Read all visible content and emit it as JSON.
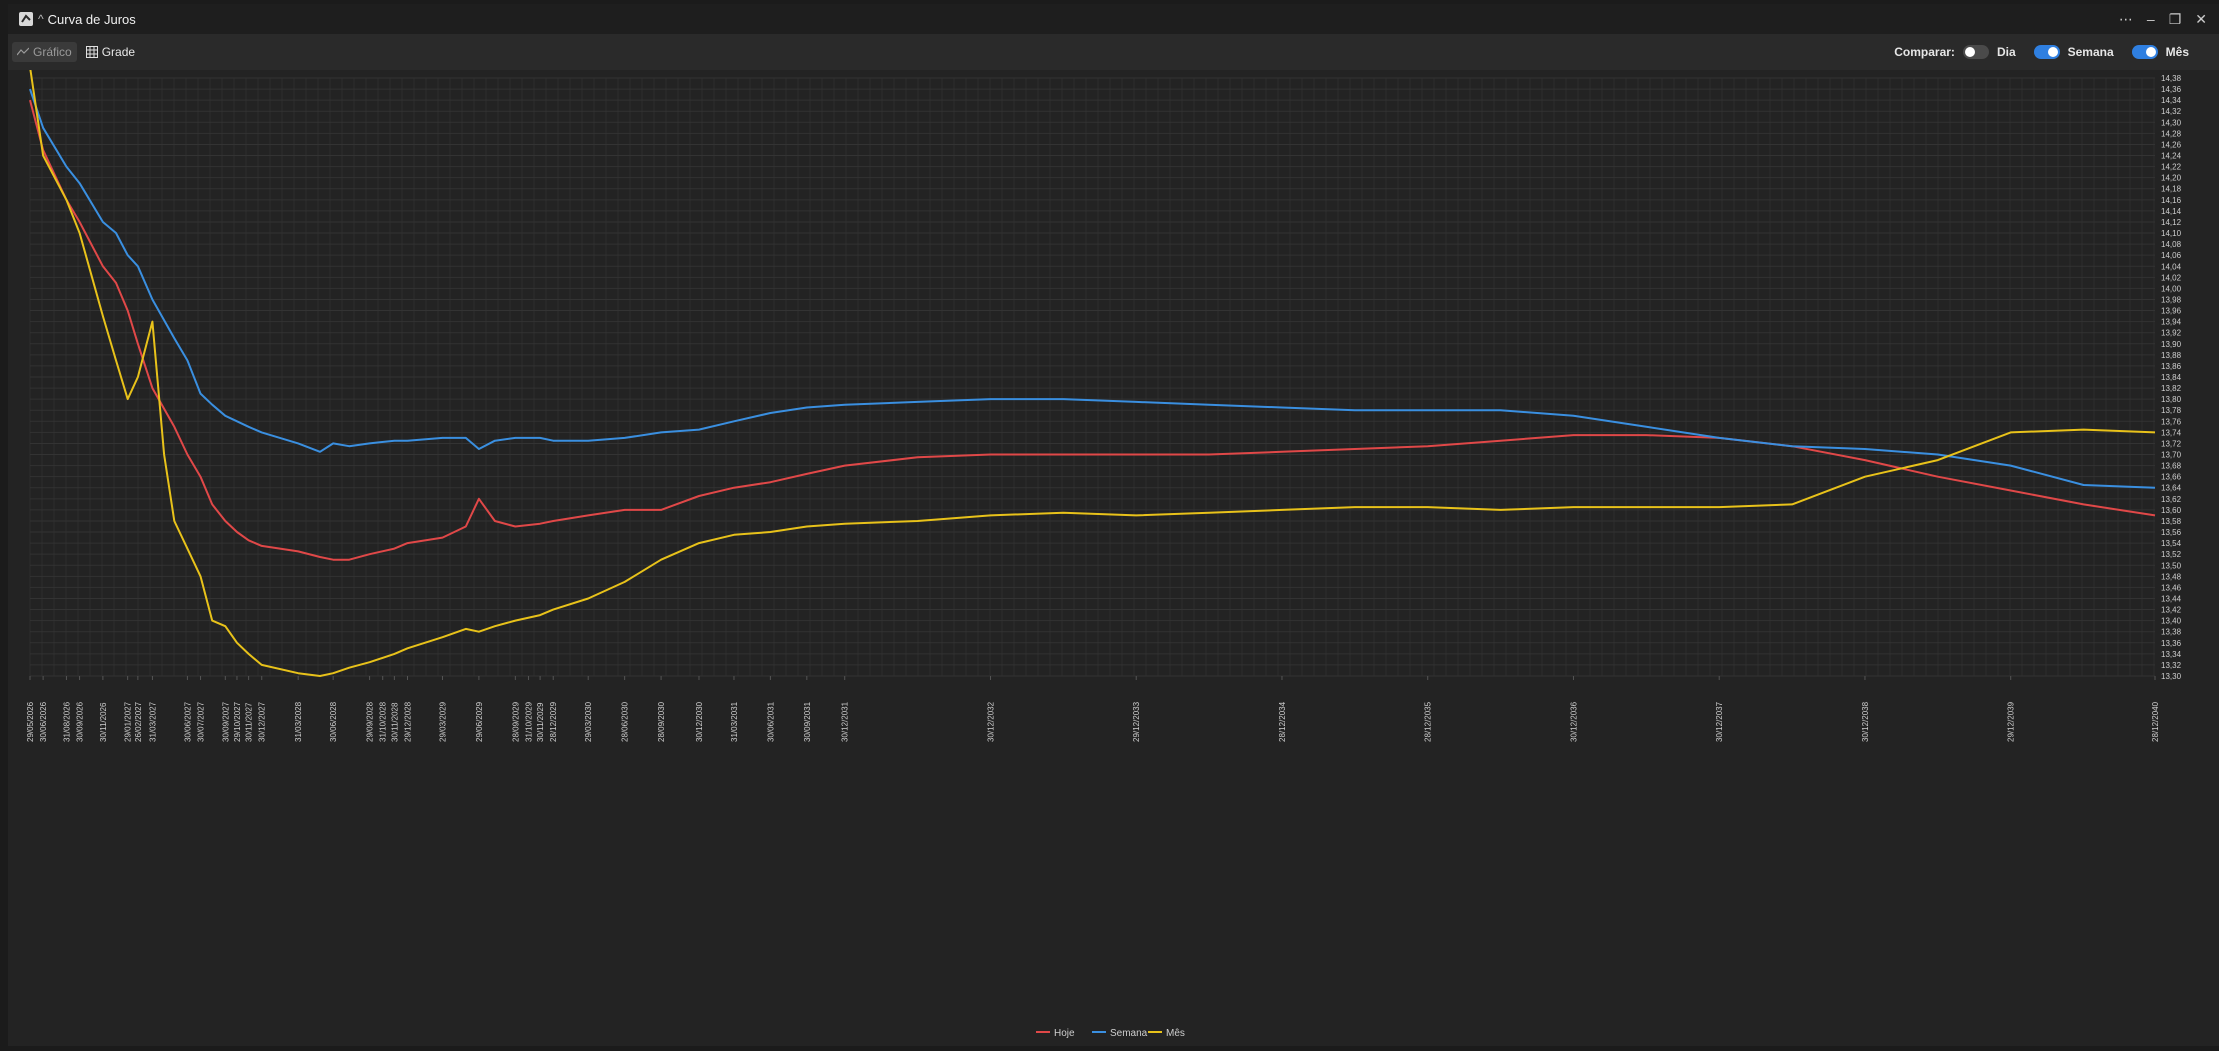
{
  "window": {
    "title": "Curva de Juros"
  },
  "toolbar": {
    "chart_label": "Gráfico",
    "grid_label": "Grade",
    "compare_label": "Comparar:",
    "toggles": [
      {
        "label": "Dia",
        "on": false
      },
      {
        "label": "Semana",
        "on": true
      },
      {
        "label": "Mês",
        "on": true
      }
    ]
  },
  "colors": {
    "hoje": "#e04848",
    "semana": "#3a8fe0",
    "mes": "#e8c21a",
    "accent": "#2f7fe0"
  },
  "chart_data": {
    "type": "line",
    "ylim": [
      13.3,
      14.38
    ],
    "y_ticks": [
      "13,30",
      "13,32",
      "13,34",
      "13,36",
      "13,38",
      "13,40",
      "13,42",
      "13,44",
      "13,46",
      "13,48",
      "13,50",
      "13,52",
      "13,54",
      "13,56",
      "13,58",
      "13,60",
      "13,62",
      "13,64",
      "13,66",
      "13,68",
      "13,70",
      "13,72",
      "13,74",
      "13,76",
      "13,78",
      "13,80",
      "13,82",
      "13,84",
      "13,86",
      "13,88",
      "13,90",
      "13,92",
      "13,94",
      "13,96",
      "13,98",
      "14,00",
      "14,02",
      "14,04",
      "14,06",
      "14,08",
      "14,10",
      "14,12",
      "14,14",
      "14,16",
      "14,18",
      "14,20",
      "14,22",
      "14,24",
      "14,26",
      "14,28",
      "14,30",
      "14,32",
      "14,34",
      "14,36",
      "14,38"
    ],
    "x_ticks": [
      "29/05/2026",
      "30/06/2026",
      "31/08/2026",
      "30/09/2026",
      "30/11/2026",
      "29/01/2027",
      "26/02/2027",
      "31/03/2027",
      "30/06/2027",
      "30/07/2027",
      "30/09/2027",
      "29/10/2027",
      "30/11/2027",
      "30/12/2027",
      "31/03/2028",
      "30/06/2028",
      "29/09/2028",
      "31/10/2028",
      "30/11/2028",
      "29/12/2028",
      "29/03/2029",
      "29/06/2029",
      "28/09/2029",
      "31/10/2029",
      "30/11/2029",
      "28/12/2029",
      "29/03/2030",
      "28/06/2030",
      "28/09/2030",
      "30/12/2030",
      "31/03/2031",
      "30/06/2031",
      "30/09/2031",
      "30/12/2031",
      "30/12/2032",
      "29/12/2033",
      "28/12/2034",
      "28/12/2035",
      "30/12/2036",
      "30/12/2037",
      "30/12/2038",
      "29/12/2039",
      "28/12/2040"
    ],
    "x_tick_years": [
      2026.41,
      2026.5,
      2026.66,
      2026.75,
      2026.91,
      2027.08,
      2027.15,
      2027.25,
      2027.49,
      2027.58,
      2027.75,
      2027.83,
      2027.91,
      2028.0,
      2028.25,
      2028.49,
      2028.74,
      2028.83,
      2028.91,
      2029.0,
      2029.24,
      2029.49,
      2029.74,
      2029.83,
      2029.91,
      2030.0,
      2030.24,
      2030.49,
      2030.74,
      2031.0,
      2031.24,
      2031.49,
      2031.74,
      2032.0,
      2033.0,
      2034.0,
      2035.0,
      2036.0,
      2037.0,
      2038.0,
      2039.0,
      2040.0,
      2040.99
    ],
    "series": [
      {
        "name": "Hoje",
        "color": "#e04848",
        "x": [
          2026.41,
          2026.5,
          2026.66,
          2026.75,
          2026.91,
          2027.0,
          2027.08,
          2027.15,
          2027.25,
          2027.4,
          2027.49,
          2027.58,
          2027.66,
          2027.75,
          2027.83,
          2027.91,
          2028.0,
          2028.25,
          2028.4,
          2028.49,
          2028.6,
          2028.74,
          2028.91,
          2029.0,
          2029.24,
          2029.4,
          2029.49,
          2029.6,
          2029.74,
          2029.91,
          2030.0,
          2030.24,
          2030.49,
          2030.74,
          2031.0,
          2031.24,
          2031.49,
          2031.74,
          2032.0,
          2032.5,
          2033.0,
          2033.5,
          2034.0,
          2034.5,
          2035.0,
          2035.5,
          2036.0,
          2036.5,
          2037.0,
          2037.5,
          2038.0,
          2038.5,
          2039.0,
          2039.5,
          2040.0,
          2040.5,
          2040.99
        ],
        "values": [
          14.34,
          14.25,
          14.16,
          14.12,
          14.04,
          14.01,
          13.96,
          13.9,
          13.82,
          13.75,
          13.7,
          13.66,
          13.61,
          13.58,
          13.56,
          13.545,
          13.535,
          13.525,
          13.515,
          13.51,
          13.51,
          13.52,
          13.53,
          13.54,
          13.55,
          13.57,
          13.62,
          13.58,
          13.57,
          13.575,
          13.58,
          13.59,
          13.6,
          13.6,
          13.625,
          13.64,
          13.65,
          13.665,
          13.68,
          13.695,
          13.7,
          13.7,
          13.7,
          13.7,
          13.705,
          13.71,
          13.715,
          13.725,
          13.735,
          13.735,
          13.73,
          13.715,
          13.69,
          13.66,
          13.635,
          13.61,
          13.59
        ]
      },
      {
        "name": "Semana",
        "color": "#3a8fe0",
        "x": [
          2026.41,
          2026.5,
          2026.66,
          2026.75,
          2026.91,
          2027.0,
          2027.08,
          2027.15,
          2027.25,
          2027.4,
          2027.49,
          2027.58,
          2027.66,
          2027.75,
          2027.83,
          2027.91,
          2028.0,
          2028.25,
          2028.4,
          2028.49,
          2028.6,
          2028.74,
          2028.91,
          2029.0,
          2029.24,
          2029.4,
          2029.49,
          2029.6,
          2029.74,
          2029.91,
          2030.0,
          2030.24,
          2030.49,
          2030.74,
          2031.0,
          2031.24,
          2031.49,
          2031.74,
          2032.0,
          2032.5,
          2033.0,
          2033.5,
          2034.0,
          2034.5,
          2035.0,
          2035.5,
          2036.0,
          2036.5,
          2037.0,
          2037.5,
          2038.0,
          2038.5,
          2039.0,
          2039.5,
          2040.0,
          2040.5,
          2040.99
        ],
        "values": [
          14.36,
          14.29,
          14.22,
          14.19,
          14.12,
          14.1,
          14.06,
          14.04,
          13.98,
          13.91,
          13.87,
          13.81,
          13.79,
          13.77,
          13.76,
          13.75,
          13.74,
          13.72,
          13.705,
          13.72,
          13.715,
          13.72,
          13.725,
          13.725,
          13.73,
          13.73,
          13.71,
          13.725,
          13.73,
          13.73,
          13.725,
          13.725,
          13.73,
          13.74,
          13.745,
          13.76,
          13.775,
          13.785,
          13.79,
          13.795,
          13.8,
          13.8,
          13.795,
          13.79,
          13.785,
          13.78,
          13.78,
          13.78,
          13.77,
          13.75,
          13.73,
          13.715,
          13.71,
          13.7,
          13.68,
          13.645,
          13.64
        ]
      },
      {
        "name": "Mês",
        "color": "#e8c21a",
        "x": [
          2026.41,
          2026.5,
          2026.66,
          2026.75,
          2026.91,
          2027.0,
          2027.08,
          2027.15,
          2027.25,
          2027.33,
          2027.4,
          2027.49,
          2027.58,
          2027.66,
          2027.75,
          2027.83,
          2027.91,
          2028.0,
          2028.25,
          2028.4,
          2028.49,
          2028.6,
          2028.74,
          2028.91,
          2029.0,
          2029.24,
          2029.4,
          2029.49,
          2029.6,
          2029.74,
          2029.91,
          2030.0,
          2030.24,
          2030.49,
          2030.74,
          2031.0,
          2031.24,
          2031.49,
          2031.74,
          2032.0,
          2032.5,
          2033.0,
          2033.5,
          2034.0,
          2034.5,
          2035.0,
          2035.5,
          2036.0,
          2036.5,
          2037.0,
          2037.5,
          2038.0,
          2038.5,
          2039.0,
          2039.5,
          2040.0,
          2040.5,
          2040.99
        ],
        "values": [
          14.4,
          14.24,
          14.16,
          14.1,
          13.95,
          13.87,
          13.8,
          13.84,
          13.94,
          13.7,
          13.58,
          13.53,
          13.48,
          13.4,
          13.39,
          13.36,
          13.34,
          13.32,
          13.305,
          13.3,
          13.305,
          13.315,
          13.325,
          13.34,
          13.35,
          13.37,
          13.385,
          13.38,
          13.39,
          13.4,
          13.41,
          13.42,
          13.44,
          13.47,
          13.51,
          13.54,
          13.555,
          13.56,
          13.57,
          13.575,
          13.58,
          13.59,
          13.595,
          13.59,
          13.595,
          13.6,
          13.605,
          13.605,
          13.6,
          13.605,
          13.605,
          13.605,
          13.61,
          13.66,
          13.69,
          13.74,
          13.745,
          13.74
        ]
      }
    ]
  }
}
